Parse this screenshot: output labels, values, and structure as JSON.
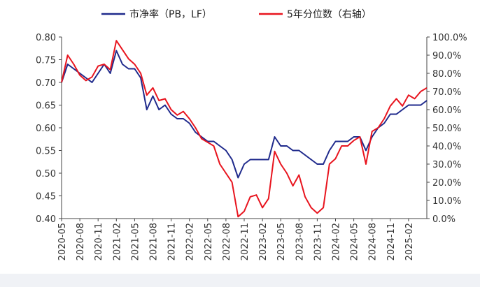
{
  "chart_data": {
    "type": "line",
    "legend": {
      "placement": "top-center"
    },
    "series": [
      {
        "name": "市净率（PB，LF）",
        "axis": "left",
        "color": "#1f2a8c",
        "points": [
          [
            "2020-05",
            0.7
          ],
          [
            "2020-06",
            0.74
          ],
          [
            "2020-07",
            0.73
          ],
          [
            "2020-08",
            0.72
          ],
          [
            "2020-09",
            0.71
          ],
          [
            "2020-10",
            0.7
          ],
          [
            "2020-11",
            0.72
          ],
          [
            "2020-12",
            0.74
          ],
          [
            "2021-01",
            0.72
          ],
          [
            "2021-02",
            0.77
          ],
          [
            "2021-03",
            0.74
          ],
          [
            "2021-04",
            0.73
          ],
          [
            "2021-05",
            0.73
          ],
          [
            "2021-06",
            0.71
          ],
          [
            "2021-07",
            0.64
          ],
          [
            "2021-08",
            0.67
          ],
          [
            "2021-09",
            0.64
          ],
          [
            "2021-10",
            0.65
          ],
          [
            "2021-11",
            0.63
          ],
          [
            "2021-12",
            0.62
          ],
          [
            "2022-01",
            0.62
          ],
          [
            "2022-02",
            0.61
          ],
          [
            "2022-03",
            0.59
          ],
          [
            "2022-04",
            0.58
          ],
          [
            "2022-05",
            0.57
          ],
          [
            "2022-06",
            0.57
          ],
          [
            "2022-07",
            0.56
          ],
          [
            "2022-08",
            0.55
          ],
          [
            "2022-09",
            0.53
          ],
          [
            "2022-10",
            0.49
          ],
          [
            "2022-11",
            0.52
          ],
          [
            "2022-12",
            0.53
          ],
          [
            "2023-01",
            0.53
          ],
          [
            "2023-02",
            0.53
          ],
          [
            "2023-03",
            0.53
          ],
          [
            "2023-04",
            0.58
          ],
          [
            "2023-05",
            0.56
          ],
          [
            "2023-06",
            0.56
          ],
          [
            "2023-07",
            0.55
          ],
          [
            "2023-08",
            0.55
          ],
          [
            "2023-09",
            0.54
          ],
          [
            "2023-10",
            0.53
          ],
          [
            "2023-11",
            0.52
          ],
          [
            "2023-12",
            0.52
          ],
          [
            "2024-01",
            0.55
          ],
          [
            "2024-02",
            0.57
          ],
          [
            "2024-03",
            0.57
          ],
          [
            "2024-04",
            0.57
          ],
          [
            "2024-05",
            0.58
          ],
          [
            "2024-06",
            0.58
          ],
          [
            "2024-07",
            0.55
          ],
          [
            "2024-08",
            0.58
          ],
          [
            "2024-09",
            0.6
          ],
          [
            "2024-10",
            0.61
          ],
          [
            "2024-11",
            0.63
          ],
          [
            "2024-12",
            0.63
          ],
          [
            "2025-01",
            0.64
          ],
          [
            "2025-02",
            0.65
          ],
          [
            "2025-03",
            0.65
          ],
          [
            "2025-04",
            0.65
          ],
          [
            "2025-05",
            0.66
          ]
        ]
      },
      {
        "name": "5年分位数（右轴）",
        "axis": "right",
        "color": "#e8141e",
        "points": [
          [
            "2020-05",
            0.75
          ],
          [
            "2020-06",
            0.9
          ],
          [
            "2020-07",
            0.85
          ],
          [
            "2020-08",
            0.79
          ],
          [
            "2020-09",
            0.76
          ],
          [
            "2020-10",
            0.78
          ],
          [
            "2020-11",
            0.84
          ],
          [
            "2020-12",
            0.85
          ],
          [
            "2021-01",
            0.82
          ],
          [
            "2021-02",
            0.98
          ],
          [
            "2021-03",
            0.93
          ],
          [
            "2021-04",
            0.88
          ],
          [
            "2021-05",
            0.85
          ],
          [
            "2021-06",
            0.8
          ],
          [
            "2021-07",
            0.68
          ],
          [
            "2021-08",
            0.72
          ],
          [
            "2021-09",
            0.65
          ],
          [
            "2021-10",
            0.66
          ],
          [
            "2021-11",
            0.6
          ],
          [
            "2021-12",
            0.57
          ],
          [
            "2022-01",
            0.59
          ],
          [
            "2022-02",
            0.55
          ],
          [
            "2022-03",
            0.5
          ],
          [
            "2022-04",
            0.44
          ],
          [
            "2022-05",
            0.42
          ],
          [
            "2022-06",
            0.4
          ],
          [
            "2022-07",
            0.3
          ],
          [
            "2022-08",
            0.25
          ],
          [
            "2022-09",
            0.2
          ],
          [
            "2022-10",
            0.01
          ],
          [
            "2022-11",
            0.04
          ],
          [
            "2022-12",
            0.12
          ],
          [
            "2023-01",
            0.13
          ],
          [
            "2023-02",
            0.06
          ],
          [
            "2023-03",
            0.11
          ],
          [
            "2023-04",
            0.37
          ],
          [
            "2023-05",
            0.3
          ],
          [
            "2023-06",
            0.25
          ],
          [
            "2023-07",
            0.18
          ],
          [
            "2023-08",
            0.24
          ],
          [
            "2023-09",
            0.12
          ],
          [
            "2023-10",
            0.06
          ],
          [
            "2023-11",
            0.03
          ],
          [
            "2023-12",
            0.06
          ],
          [
            "2024-01",
            0.3
          ],
          [
            "2024-02",
            0.33
          ],
          [
            "2024-03",
            0.4
          ],
          [
            "2024-04",
            0.4
          ],
          [
            "2024-05",
            0.43
          ],
          [
            "2024-06",
            0.45
          ],
          [
            "2024-07",
            0.3
          ],
          [
            "2024-08",
            0.48
          ],
          [
            "2024-09",
            0.5
          ],
          [
            "2024-10",
            0.55
          ],
          [
            "2024-11",
            0.62
          ],
          [
            "2024-12",
            0.66
          ],
          [
            "2025-01",
            0.62
          ],
          [
            "2025-02",
            0.68
          ],
          [
            "2025-03",
            0.66
          ],
          [
            "2025-04",
            0.7
          ],
          [
            "2025-05",
            0.72
          ]
        ]
      }
    ],
    "y_left": {
      "min": 0.4,
      "max": 0.8,
      "ticks": [
        "0.40",
        "0.45",
        "0.50",
        "0.55",
        "0.60",
        "0.65",
        "0.70",
        "0.75",
        "0.80"
      ]
    },
    "y_right": {
      "min": 0,
      "max": 1,
      "ticks": [
        "0.0%",
        "10.0%",
        "20.0%",
        "30.0%",
        "40.0%",
        "50.0%",
        "60.0%",
        "70.0%",
        "80.0%",
        "90.0%",
        "100.0%"
      ]
    },
    "x_ticks": [
      "2020-05",
      "2020-08",
      "2020-11",
      "2021-02",
      "2021-05",
      "2021-08",
      "2021-11",
      "2022-02",
      "2022-05",
      "2022-08",
      "2022-11",
      "2023-02",
      "2023-05",
      "2023-08",
      "2023-11",
      "2024-02",
      "2024-05",
      "2024-08",
      "2024-11",
      "2025-02"
    ],
    "grid": false
  }
}
